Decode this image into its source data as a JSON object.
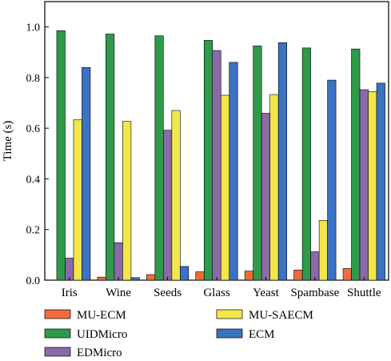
{
  "chart_data": {
    "type": "bar",
    "categories": [
      "Iris",
      "Wine",
      "Seeds",
      "Glass",
      "Yeast",
      "Spambase",
      "Shuttle"
    ],
    "series": [
      {
        "name": "MU-ECM",
        "color": "#f26b3a",
        "values": [
          0.0,
          0.012,
          0.022,
          0.033,
          0.036,
          0.04,
          0.046
        ]
      },
      {
        "name": "UIDMicro",
        "color": "#2e9a4a",
        "values": [
          0.985,
          0.972,
          0.965,
          0.947,
          0.925,
          0.917,
          0.913
        ]
      },
      {
        "name": "EDMicro",
        "color": "#8a6aa8",
        "values": [
          0.087,
          0.148,
          0.592,
          0.907,
          0.659,
          0.112,
          0.752
        ]
      },
      {
        "name": "MU-SAECM",
        "color": "#f2e64a",
        "values": [
          0.633,
          0.627,
          0.67,
          0.73,
          0.733,
          0.236,
          0.745
        ]
      },
      {
        "name": "ECM",
        "color": "#3a72c4",
        "values": [
          0.84,
          0.01,
          0.054,
          0.86,
          0.938,
          0.79,
          0.778
        ]
      }
    ],
    "title": "",
    "xlabel": "",
    "ylabel": "Time (s)",
    "ylim": [
      0,
      1.1
    ],
    "yticks": [
      0.0,
      0.2,
      0.4,
      0.6,
      0.8,
      1.0
    ],
    "ytick_labels": [
      "0.0",
      "0.2",
      "0.4",
      "0.6",
      "0.8",
      "1.0"
    ],
    "grid": false,
    "legend_position": "bottom"
  }
}
